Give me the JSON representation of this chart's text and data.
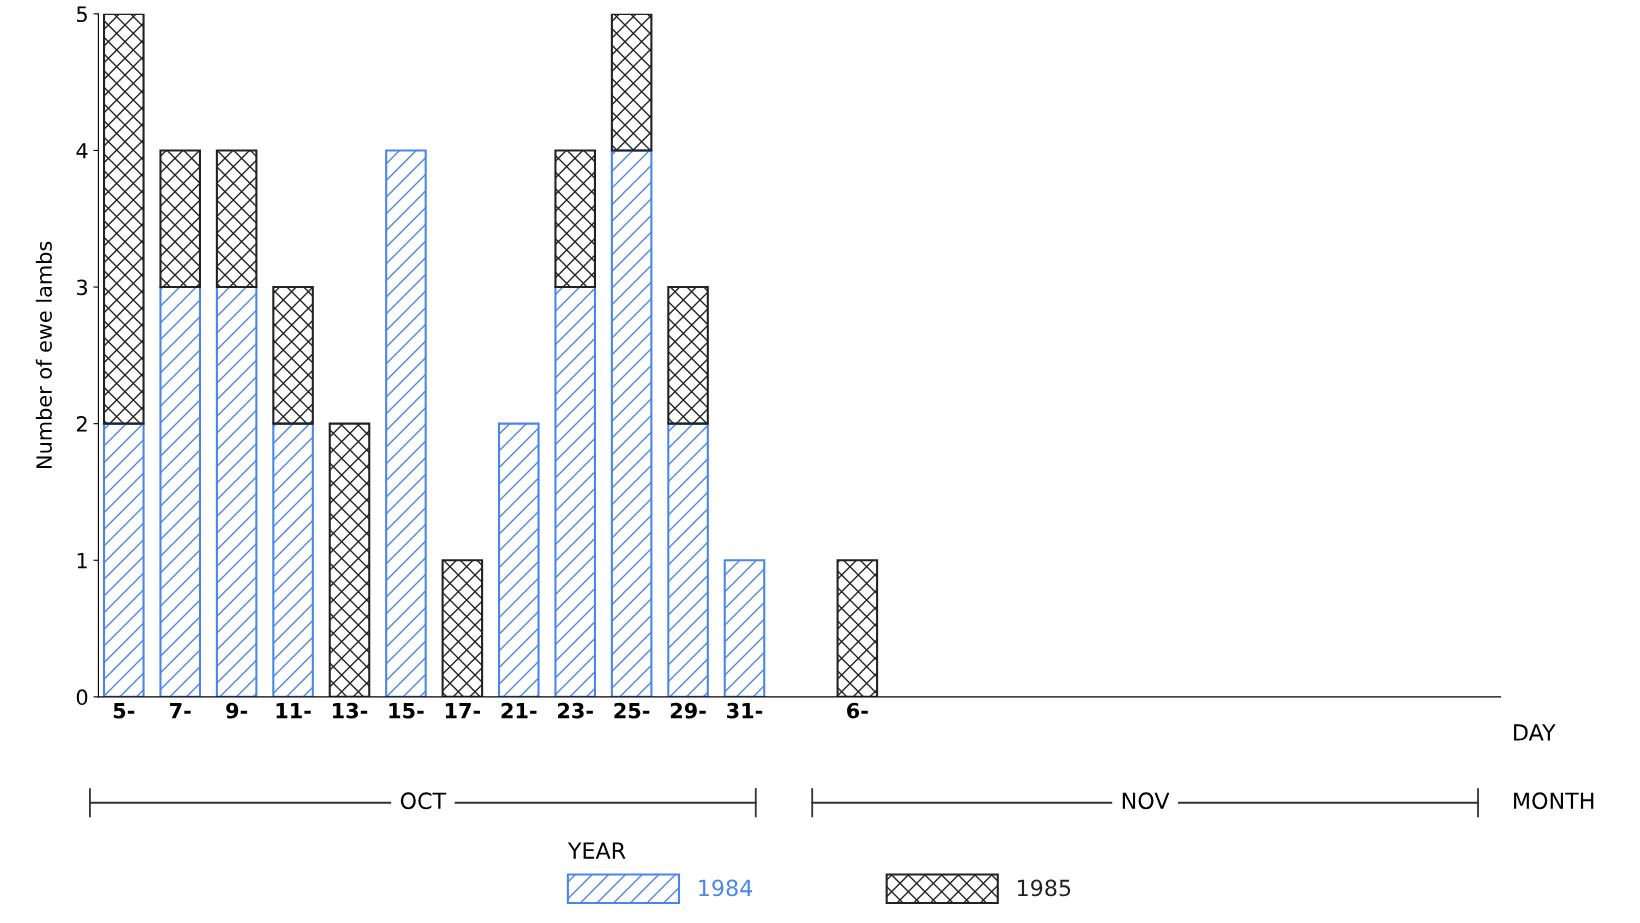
{
  "chart_data": {
    "type": "bar",
    "stacked": true,
    "ylabel": "Number of ewe lambs",
    "legend_title": "YEAR",
    "legend": "bottom",
    "categories": [
      "5-",
      "7-",
      "9-",
      "11-",
      "13-",
      "15-",
      "17-",
      "21-",
      "23-",
      "25-",
      "29-",
      "31-",
      null,
      "6-"
    ],
    "series": [
      {
        "name": "1984",
        "color": "#4a86e8",
        "values": [
          2,
          3,
          3,
          2,
          0,
          4,
          0,
          2,
          3,
          4,
          2,
          1,
          null,
          0
        ]
      },
      {
        "name": "1985",
        "color": "#222222",
        "values": [
          3,
          1,
          1,
          1,
          2,
          0,
          1,
          0,
          1,
          1,
          1,
          0,
          null,
          1
        ]
      }
    ],
    "ylim": [
      0,
      5
    ],
    "yticks": [
      0,
      1,
      2,
      3,
      4,
      5
    ],
    "grid": false,
    "annotations": [
      "DAY",
      "OCT",
      "NOV",
      "MONTH"
    ]
  }
}
